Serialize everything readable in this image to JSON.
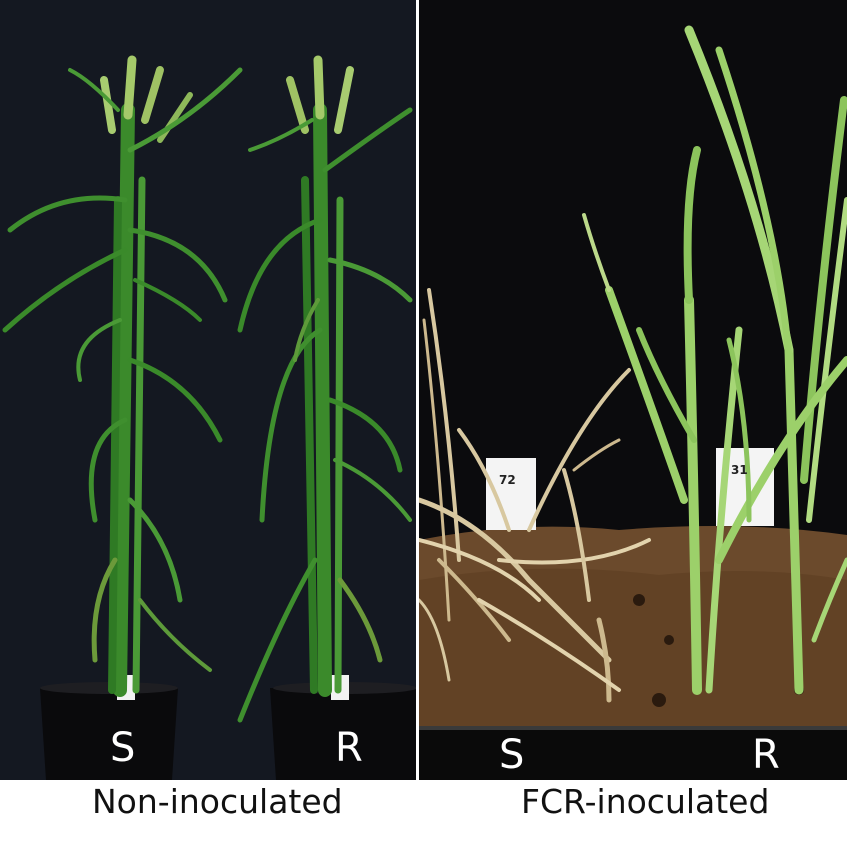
{
  "panels": [
    {
      "caption": "Non-inoculated",
      "pots": [
        {
          "letter": "S"
        },
        {
          "letter": "R"
        }
      ]
    },
    {
      "caption": "FCR-inoculated",
      "pots": [
        {
          "letter": "S",
          "tag": "72"
        },
        {
          "letter": "R",
          "tag": "31"
        }
      ]
    }
  ],
  "colors": {
    "healthy_green": "#3f8f2e",
    "light_green": "#9cd06a",
    "dead_straw": "#d8c8a0",
    "soil": "#6b4a2c",
    "background_left": "#141821",
    "background_right": "#0b0b0d"
  }
}
